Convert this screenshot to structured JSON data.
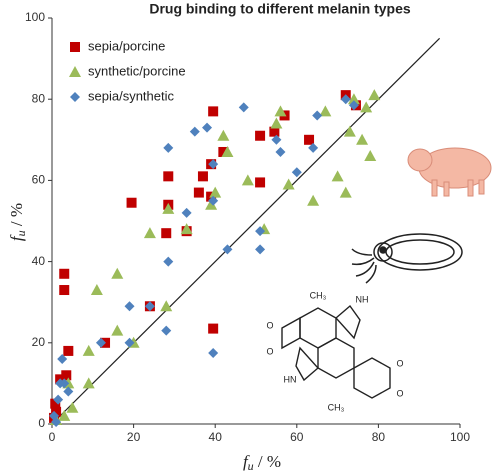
{
  "chart_data": {
    "type": "scatter",
    "title": "Drug binding to different melanin types",
    "x_label": {
      "main": "f",
      "sub": "u",
      "rest": " / %"
    },
    "y_label": {
      "main": "f",
      "sub": "u",
      "rest": " / %"
    },
    "xlim": [
      0,
      100
    ],
    "ylim": [
      0,
      100
    ],
    "xticks": [
      0,
      20,
      40,
      60,
      80,
      100
    ],
    "yticks": [
      0,
      20,
      40,
      60,
      80,
      100
    ],
    "reference_line": {
      "x": [
        0,
        95
      ],
      "y": [
        0,
        95
      ],
      "color": "#222"
    },
    "legend": "upper left",
    "series": [
      {
        "name": "sepia/porcine",
        "color": "#c00000",
        "marker": "square",
        "x": [
          0.5,
          0.8,
          1,
          2,
          3,
          3,
          4,
          3.5,
          13,
          19.5,
          24,
          28,
          28.5,
          28.5,
          33,
          36,
          37,
          39.5,
          39.5,
          39,
          39,
          42,
          51,
          51,
          54.5,
          57,
          63,
          72,
          74.5
        ],
        "y": [
          1.5,
          5,
          3,
          11,
          33,
          37,
          18,
          12,
          20,
          54.5,
          29,
          47,
          54,
          61,
          47.5,
          57,
          61,
          77,
          23.5,
          56,
          64,
          67,
          71,
          59.5,
          72,
          76,
          70,
          81,
          78.5
        ]
      },
      {
        "name": "synthetic/porcine",
        "color": "#9bbb59",
        "marker": "triangle",
        "x": [
          1,
          3,
          4,
          5,
          9,
          9,
          11,
          16,
          16,
          20,
          24,
          28,
          28.5,
          33,
          39,
          40,
          42,
          43,
          48,
          52,
          55,
          56,
          58,
          64,
          67,
          70,
          72,
          73,
          74,
          76,
          77,
          78,
          79
        ],
        "y": [
          1,
          2,
          10,
          4,
          10,
          18,
          33,
          37,
          23,
          20,
          47,
          29,
          53,
          48,
          54,
          57,
          71,
          67,
          60,
          48,
          74,
          77,
          59,
          55,
          77,
          61,
          57,
          72,
          80,
          70,
          78,
          66,
          81
        ]
      },
      {
        "name": "sepia/synthetic",
        "color": "#4f81bd",
        "marker": "diamond",
        "x": [
          0.5,
          1,
          1.5,
          2,
          2.5,
          3,
          4,
          12,
          19,
          19,
          24,
          28,
          28.5,
          28.5,
          33,
          35,
          38,
          39.5,
          39.5,
          39.5,
          43,
          47,
          51,
          51,
          55,
          56,
          60,
          64,
          65,
          72,
          74
        ],
        "y": [
          2,
          0.5,
          6,
          10,
          16,
          10,
          8,
          20,
          29,
          20,
          29,
          23,
          40,
          68,
          52,
          72,
          73,
          17.5,
          55,
          64,
          43,
          78,
          43,
          47.5,
          70,
          67,
          62,
          68,
          76,
          80,
          78.5
        ]
      }
    ],
    "illustration_labels": [
      "CH₃",
      "NH",
      "HN",
      "CH₃",
      "O",
      "O",
      "O",
      "O"
    ]
  }
}
